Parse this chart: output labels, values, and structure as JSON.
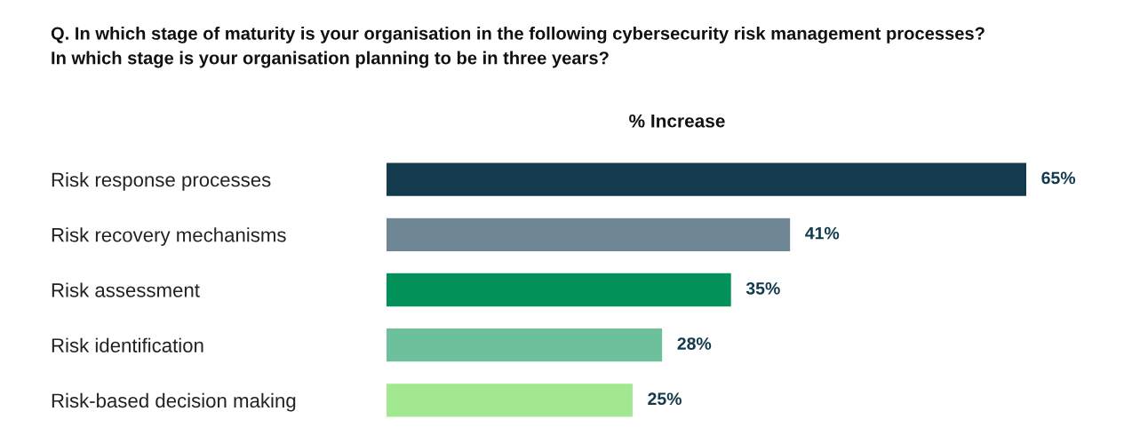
{
  "chart_data": {
    "type": "bar",
    "orientation": "horizontal",
    "title": "Q. In which stage of maturity is your organisation in the following cybersecurity risk management processes?\nIn which stage is your organisation planning to be in three years?",
    "subtitle": "% Increase",
    "categories": [
      "Risk response processes",
      "Risk recovery mechanisms",
      "Risk assessment",
      "Risk identification",
      "Risk-based decision making"
    ],
    "values": [
      65,
      41,
      35,
      28,
      25
    ],
    "colors": [
      "#133a4d",
      "#6f8794",
      "#029158",
      "#6cc19c",
      "#a2e891"
    ],
    "value_labels": [
      "65%",
      "41%",
      "35%",
      "28%",
      "25%"
    ],
    "tick_labels": "y",
    "grid": false,
    "legend": false
  }
}
